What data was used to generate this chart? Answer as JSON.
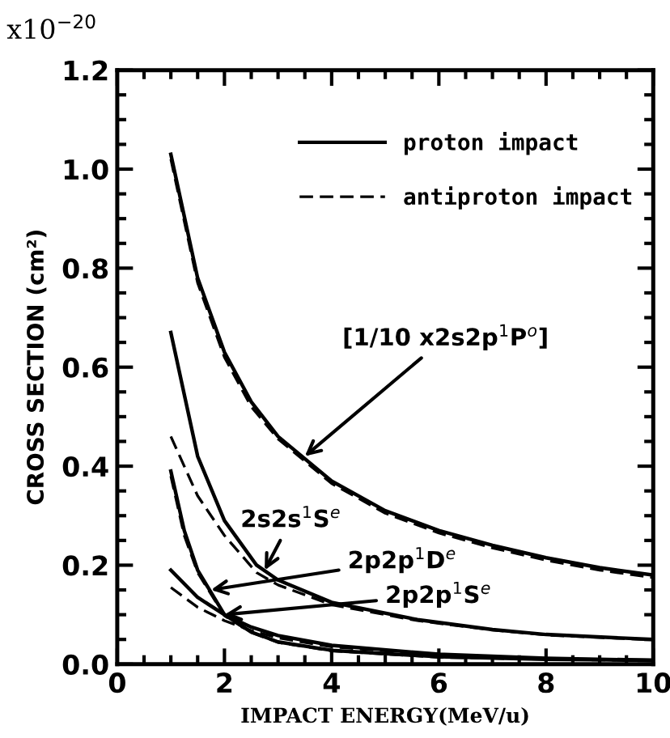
{
  "chart_data": {
    "type": "line",
    "xlabel": "IMPACT ENERGY(MeV/u)",
    "ylabel": "CROSS SECTION (cm²)",
    "xlim": [
      0,
      10
    ],
    "xticks": [
      0,
      2,
      4,
      6,
      8,
      10
    ],
    "ylim": [
      0,
      1.2
    ],
    "yticks": [
      {
        "value": 0,
        "label": "0.0"
      },
      0.2,
      0.4,
      0.6,
      0.8,
      {
        "value": 1.0,
        "label": "1.0"
      },
      1.2
    ],
    "legend": "top right",
    "grid": false,
    "marker": "none",
    "series": [
      {
        "name": "proton impact",
        "color": "#000000",
        "line_style": "solid",
        "x": [
          1,
          1.5,
          2,
          2.5,
          3,
          4,
          5,
          6,
          7,
          8,
          9,
          10
        ],
        "values": [
          1.03,
          0.78,
          0.63,
          0.53,
          0.46,
          0.37,
          0.31,
          0.27,
          0.24,
          0.215,
          0.195,
          0.18
        ]
      },
      {
        "name": "antiproton impact",
        "color": "#000000",
        "line_style": "dashed",
        "x": [
          1,
          1.5,
          2,
          2.5,
          3,
          4,
          5,
          6,
          7,
          8,
          9,
          10
        ],
        "values": [
          1.02,
          0.77,
          0.62,
          0.52,
          0.455,
          0.365,
          0.305,
          0.265,
          0.235,
          0.21,
          0.19,
          0.175
        ]
      },
      {
        "color": "#000000",
        "line_style": "solid",
        "x": [
          1,
          1.5,
          2,
          2.6,
          3,
          4,
          5.6,
          7,
          8,
          10
        ],
        "values": [
          0.67,
          0.42,
          0.29,
          0.2,
          0.17,
          0.125,
          0.09,
          0.07,
          0.06,
          0.05
        ]
      },
      {
        "color": "#000000",
        "line_style": "dashed",
        "x": [
          1,
          1.5,
          2,
          2.6,
          3,
          4,
          5.6,
          7,
          8,
          10
        ],
        "values": [
          0.46,
          0.34,
          0.26,
          0.185,
          0.16,
          0.12,
          0.088,
          0.069,
          0.059,
          0.049
        ]
      },
      {
        "color": "#000000",
        "line_style": "solid",
        "x": [
          1,
          1.25,
          1.5,
          2,
          2.5,
          3,
          4,
          6,
          8,
          10
        ],
        "values": [
          0.39,
          0.27,
          0.19,
          0.1,
          0.065,
          0.045,
          0.028,
          0.015,
          0.01,
          0.008
        ]
      },
      {
        "color": "#000000",
        "line_style": "dashed",
        "x": [
          1,
          1.25,
          1.5,
          2,
          2.5,
          3,
          4,
          6,
          8,
          10
        ],
        "values": [
          0.38,
          0.26,
          0.185,
          0.098,
          0.064,
          0.044,
          0.027,
          0.014,
          0.01,
          0.007
        ]
      },
      {
        "color": "#000000",
        "line_style": "solid",
        "x": [
          1,
          1.5,
          2,
          2.5,
          3,
          4,
          6,
          8,
          10
        ],
        "values": [
          0.19,
          0.135,
          0.1,
          0.075,
          0.058,
          0.038,
          0.02,
          0.012,
          0.008
        ]
      },
      {
        "color": "#000000",
        "line_style": "dashed",
        "x": [
          1,
          1.5,
          2,
          2.5,
          3,
          4,
          6,
          8,
          10
        ],
        "values": [
          0.155,
          0.115,
          0.088,
          0.068,
          0.053,
          0.035,
          0.019,
          0.011,
          0.007
        ]
      }
    ],
    "annotations": [
      {
        "text": "[1/10 x2s2p$^{1}$P$^{o}$]",
        "x": 3.5,
        "y": 0.42
      },
      {
        "text": "2s2s$^{1}$S$^{e}$",
        "x": 2.75,
        "y": 0.19
      },
      {
        "text": "2p2p$^{1}$D$^{e}$",
        "x": 1.75,
        "y": 0.15
      },
      {
        "text": "2p2p$^{1}$S$^{e}$",
        "x": 2.0,
        "y": 0.1
      },
      "x10$^{−20}$"
    ]
  }
}
